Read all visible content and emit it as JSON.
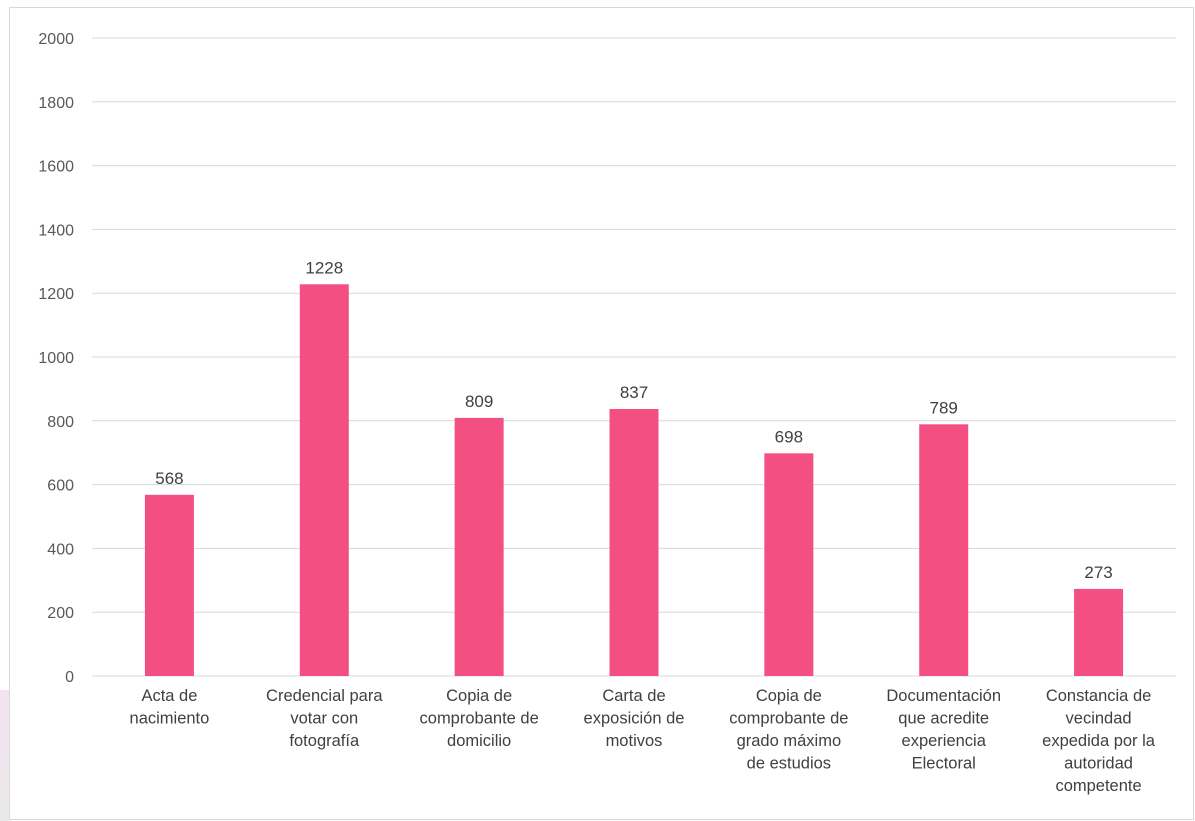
{
  "chart_data": {
    "type": "bar",
    "categories": [
      [
        "Acta de",
        "nacimiento"
      ],
      [
        "Credencial para",
        "votar con",
        "fotografía"
      ],
      [
        "Copia de",
        "comprobante de",
        "domicilio"
      ],
      [
        "Carta de",
        "exposición de",
        "motivos"
      ],
      [
        "Copia de",
        "comprobante de",
        "grado máximo",
        "de estudios"
      ],
      [
        "Documentación",
        "que acredite",
        "experiencia",
        "Electoral"
      ],
      [
        "Constancia de",
        "vecindad",
        "expedida por la",
        "autoridad",
        "competente"
      ]
    ],
    "values": [
      568,
      1228,
      809,
      837,
      698,
      789,
      273
    ],
    "ylim": [
      0,
      2000
    ],
    "yticks": [
      0,
      200,
      400,
      600,
      800,
      1000,
      1200,
      1400,
      1600,
      1800,
      2000
    ],
    "grid": true,
    "legend": "none",
    "bar_color": "#f44f83",
    "title": "",
    "xlabel": "",
    "ylabel": ""
  }
}
